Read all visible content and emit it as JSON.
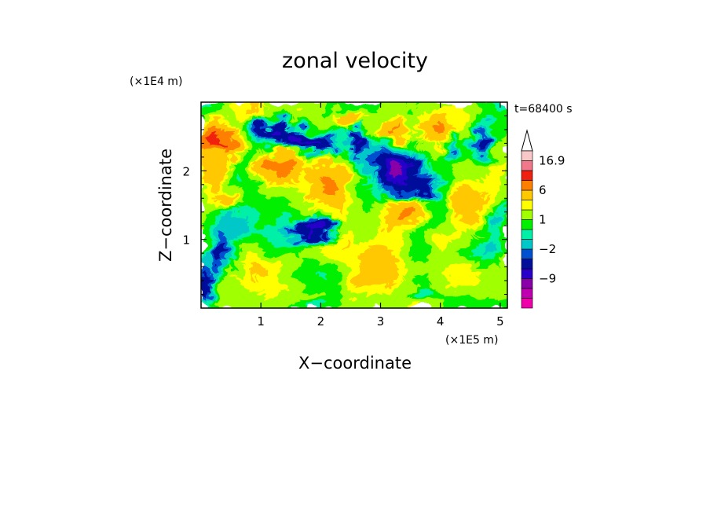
{
  "chart_data": {
    "type": "heatmap",
    "title": "zonal velocity",
    "xlabel": "X−coordinate",
    "ylabel": "Z−coordinate",
    "x_unit": "(×1E5 m)",
    "y_unit": "(×1E4 m)",
    "time_label": "t=68400 s",
    "xlim": [
      0,
      5.12
    ],
    "ylim": [
      0,
      3.0
    ],
    "x_ticks": [
      1,
      2,
      3,
      4,
      5
    ],
    "x_tick_labels": [
      "1",
      "2",
      "3",
      "4",
      "5"
    ],
    "y_ticks": [
      1,
      2
    ],
    "y_tick_labels": [
      "1",
      "2"
    ],
    "colorbar": {
      "levels": [
        -20,
        -15,
        -12,
        -9,
        -6,
        -3,
        -2,
        -1,
        0,
        1,
        2,
        3,
        6,
        9,
        12,
        16.9
      ],
      "labels": [
        {
          "value": 16.9,
          "text": "16.9"
        },
        {
          "value": 6,
          "text": "6"
        },
        {
          "value": 1,
          "text": "1"
        },
        {
          "value": -2,
          "text": "−2"
        },
        {
          "value": -9,
          "text": "−9"
        }
      ],
      "colors": [
        "#f000a8",
        "#c000b0",
        "#8a00a8",
        "#2800c8",
        "#00109a",
        "#0050d0",
        "#00c8c8",
        "#00f0a8",
        "#00f000",
        "#a0ff00",
        "#ffff00",
        "#ffc800",
        "#ff8000",
        "#f02010",
        "#f0788a",
        "#f8c8c8"
      ],
      "extend": "max"
    }
  }
}
